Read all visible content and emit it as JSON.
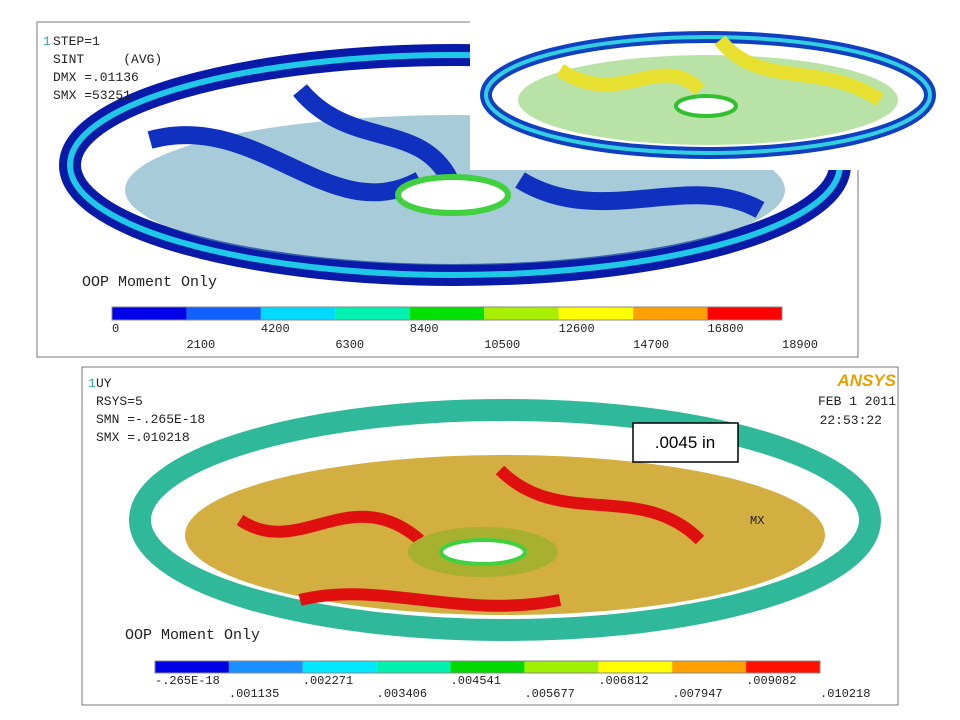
{
  "top_panel": {
    "number": "1",
    "lines": [
      "STEP=1",
      "SINT     (AVG)",
      "DMX =.01136",
      "SMX =53251"
    ],
    "caption": "OOP Moment Only",
    "legend": {
      "colors": [
        "#0000e6",
        "#1060ff",
        "#00d8ff",
        "#00f0b0",
        "#00e000",
        "#a8f000",
        "#ffff00",
        "#ffa000",
        "#ff0000"
      ],
      "labels": [
        "0",
        "2100",
        "4200",
        "6300",
        "8400",
        "10500",
        "12600",
        "14700",
        "16800",
        "18900"
      ]
    }
  },
  "bottom_panel": {
    "number": "1",
    "lines": [
      "UY",
      "RSYS=5",
      "SMN =-.265E-18",
      "SMX =.010218"
    ],
    "logo": "ANSYS",
    "date": "FEB  1 2011",
    "time": "22:53:22",
    "marker": "MX",
    "caption": "OOP Moment Only",
    "legend": {
      "colors": [
        "#0000e6",
        "#1890ff",
        "#00e8ff",
        "#00f0b0",
        "#00d800",
        "#a0f000",
        "#ffff00",
        "#ffa000",
        "#ff1000"
      ],
      "labels": [
        "-.265E-18",
        ".001135",
        ".002271",
        ".003406",
        ".004541",
        ".005677",
        ".006812",
        ".007947",
        ".009082",
        ".010218"
      ]
    }
  },
  "callout": ".0045 in"
}
